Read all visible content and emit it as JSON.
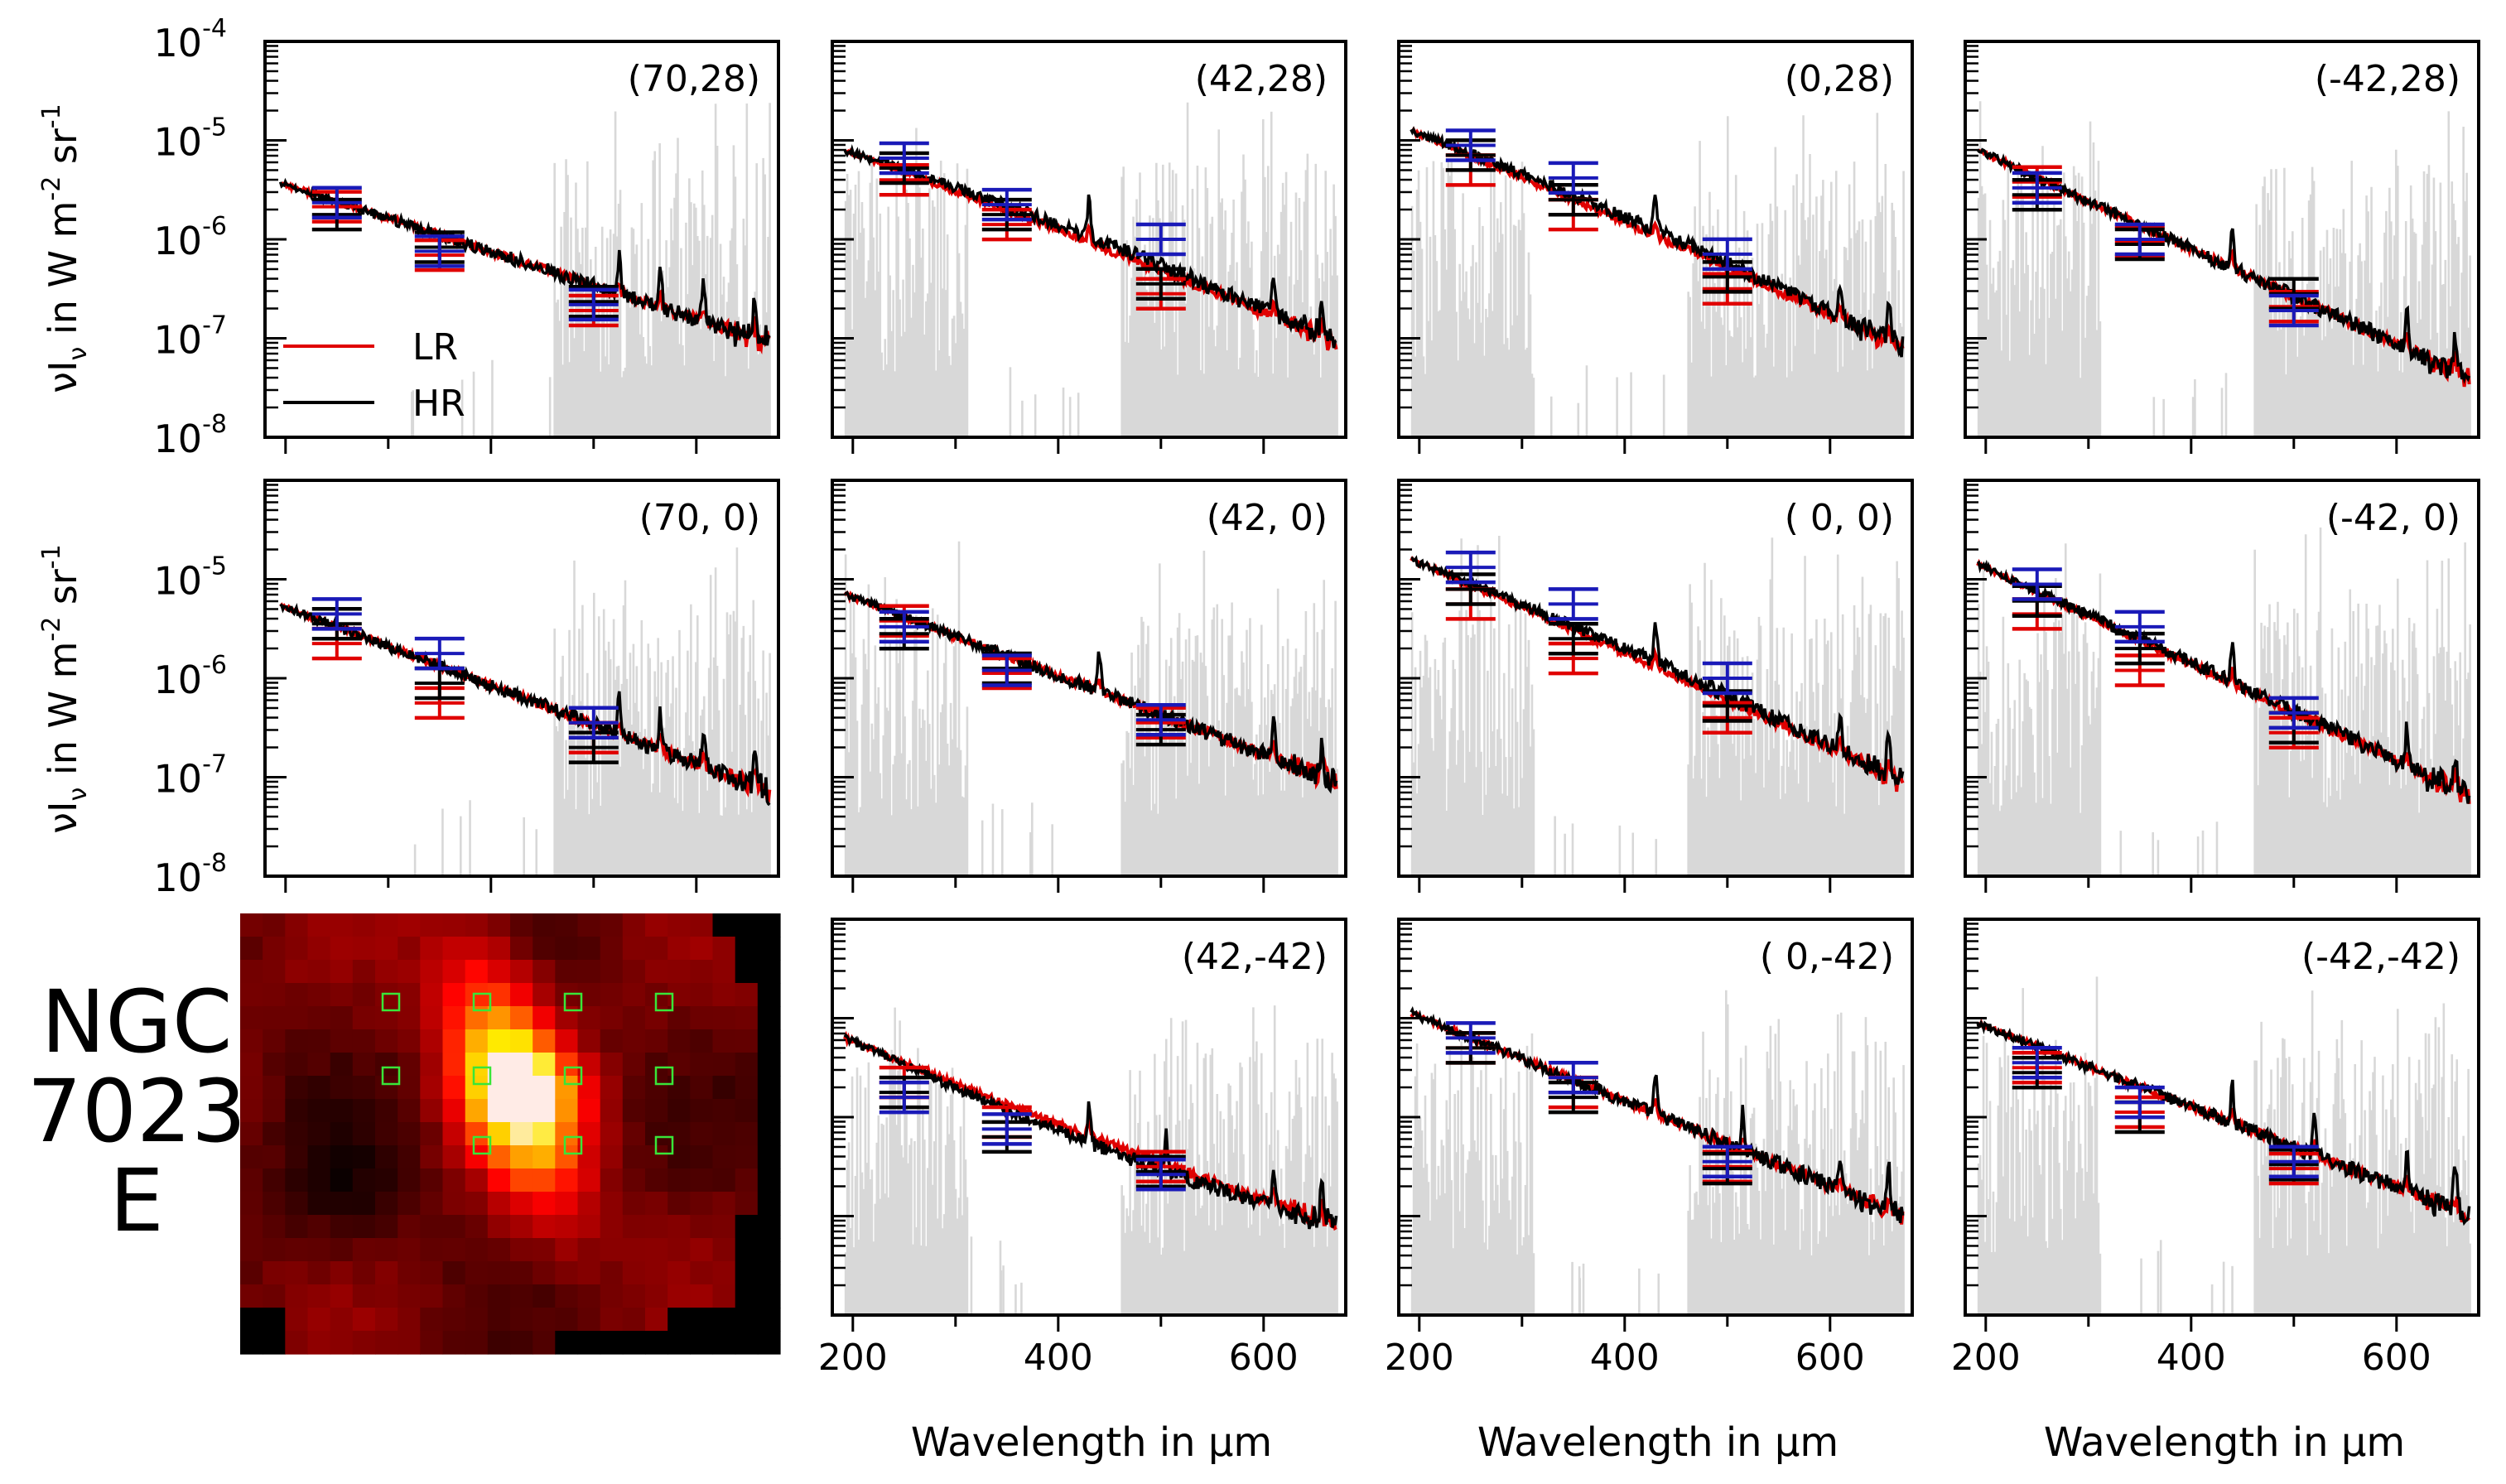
{
  "figure": {
    "object_label": [
      "NGC",
      "7023",
      "E"
    ],
    "ylabel_parts": [
      "νI",
      "ν",
      " in W m",
      "-2",
      " sr",
      "-1"
    ],
    "xlabel": "Wavelength in µm",
    "colors": {
      "lr": "#e00000",
      "hr": "#000000",
      "photometry": "#1a1ab8",
      "noise": "#d8d8d8",
      "map_box": "#39e639"
    }
  },
  "chart_data": {
    "type": "line",
    "title": "",
    "x_range": [
      180,
      680
    ],
    "xticks": [
      200,
      400,
      600
    ],
    "ylim_log10": [
      -8,
      -4
    ],
    "yticks_labels": [
      {
        "base": "10",
        "exp": "-4"
      },
      {
        "base": "10",
        "exp": "-5"
      },
      {
        "base": "10",
        "exp": "-6"
      },
      {
        "base": "10",
        "exp": "-7"
      },
      {
        "base": "10",
        "exp": "-8"
      }
    ],
    "legend": [
      {
        "name": "LR",
        "color": "#e00000"
      },
      {
        "name": "HR",
        "color": "#000000"
      }
    ],
    "panels": [
      {
        "label": "(70,28)",
        "row": 0,
        "col": 0,
        "slw_only": true,
        "start_log": -5.42,
        "end_log": -7.05,
        "shape": 0.0,
        "shift": 0.0,
        "lines": [
          565,
          525,
          607,
          657
        ],
        "photo_blue": [
          -5.63,
          -6.12,
          -6.66
        ],
        "photo_red": [
          -5.67,
          -6.16,
          -6.72
        ],
        "photo_black": [
          -5.75,
          -6.08,
          -6.63
        ]
      },
      {
        "label": "(42,28)",
        "row": 0,
        "col": 1,
        "slw_only": false,
        "start_log": -5.1,
        "end_log": -7.05,
        "shape": 0.1,
        "shift": 0.06,
        "lines": [
          430,
          610,
          657
        ],
        "photo_blue": [
          -5.18,
          -5.65,
          -6.0
        ],
        "photo_red": [
          -5.4,
          -5.85,
          -6.55
        ],
        "photo_black": [
          -5.28,
          -5.75,
          -6.45
        ]
      },
      {
        "label": "(0,28)",
        "row": 0,
        "col": 2,
        "slw_only": false,
        "start_log": -4.9,
        "end_log": -7.1,
        "shape": 0.08,
        "shift": 0.05,
        "lines": [
          430,
          610,
          657
        ],
        "photo_blue": [
          -5.05,
          -5.38,
          -6.15
        ],
        "photo_red": [
          -5.3,
          -5.75,
          -6.5
        ],
        "photo_black": [
          -5.15,
          -5.6,
          -6.38
        ]
      },
      {
        "label": "(-42,28)",
        "row": 0,
        "col": 3,
        "slw_only": false,
        "start_log": -5.1,
        "end_log": -7.4,
        "shape": 0.0,
        "shift": 0.0,
        "lines": [
          440,
          610,
          657
        ],
        "photo_blue": [
          -5.48,
          -6.0,
          -6.72
        ],
        "photo_red": [
          -5.42,
          -6.02,
          -6.68
        ],
        "photo_black": [
          -5.55,
          -6.05,
          -6.55
        ]
      },
      {
        "label": "(70, 0)",
        "row": 1,
        "col": 0,
        "slw_only": true,
        "start_log": -5.25,
        "end_log": -7.15,
        "shape": 0.0,
        "shift": 0.0,
        "lines": [
          565,
          525,
          607,
          657
        ],
        "photo_blue": [
          -5.35,
          -5.75,
          -6.45
        ],
        "photo_red": [
          -5.65,
          -6.25,
          -6.6
        ],
        "photo_black": [
          -5.45,
          -6.05,
          -6.7
        ]
      },
      {
        "label": "(42, 0)",
        "row": 1,
        "col": 1,
        "slw_only": false,
        "start_log": -5.15,
        "end_log": -7.05,
        "shape": 0.0,
        "shift": 0.0,
        "lines": [
          440,
          610,
          657
        ],
        "photo_blue": [
          -5.48,
          -5.92,
          -6.42
        ],
        "photo_red": [
          -5.42,
          -5.95,
          -6.45
        ],
        "photo_black": [
          -5.55,
          -5.9,
          -6.52
        ]
      },
      {
        "label": "( 0, 0)",
        "row": 1,
        "col": 2,
        "slw_only": false,
        "start_log": -4.8,
        "end_log": -7.05,
        "shape": 0.08,
        "shift": 0.05,
        "lines": [
          430,
          610,
          657
        ],
        "photo_blue": [
          -4.88,
          -5.25,
          -6.0
        ],
        "photo_red": [
          -5.25,
          -5.8,
          -6.4
        ],
        "photo_black": [
          -5.1,
          -5.6,
          -6.28
        ]
      },
      {
        "label": "(-42, 0)",
        "row": 1,
        "col": 3,
        "slw_only": false,
        "start_log": -4.85,
        "end_log": -7.2,
        "shape": 0.03,
        "shift": 0.02,
        "lines": [
          440,
          610,
          657
        ],
        "photo_blue": [
          -5.05,
          -5.48,
          -6.35
        ],
        "photo_red": [
          -5.35,
          -5.92,
          -6.55
        ],
        "photo_black": [
          -5.22,
          -5.7,
          -6.5
        ]
      },
      {
        "label": "(42,-42)",
        "row": 2,
        "col": 1,
        "slw_only": false,
        "start_log": -5.2,
        "end_log": -7.1,
        "shape": -0.12,
        "shift": -0.07,
        "lines": [
          430,
          505,
          610,
          657
        ],
        "photo_blue": [
          -5.8,
          -6.12,
          -6.58
        ],
        "photo_red": [
          -5.65,
          -6.05,
          -6.5
        ],
        "photo_black": [
          -5.75,
          -6.2,
          -6.55
        ]
      },
      {
        "label": "( 0,-42)",
        "row": 2,
        "col": 2,
        "slw_only": false,
        "start_log": -4.95,
        "end_log": -7.0,
        "shape": 0.0,
        "shift": 0.0,
        "lines": [
          430,
          515,
          610,
          657
        ],
        "photo_blue": [
          -5.2,
          -5.6,
          -6.45
        ],
        "photo_red": [
          -5.3,
          -5.75,
          -6.5
        ],
        "photo_black": [
          -5.3,
          -5.8,
          -6.52
        ]
      },
      {
        "label": "(-42,-42)",
        "row": 2,
        "col": 3,
        "slw_only": false,
        "start_log": -5.05,
        "end_log": -7.0,
        "shape": 0.0,
        "shift": 0.0,
        "lines": [
          440,
          520,
          610,
          657
        ],
        "photo_blue": [
          -5.45,
          -5.85,
          -6.45
        ],
        "photo_red": [
          -5.5,
          -5.95,
          -6.52
        ],
        "photo_black": [
          -5.55,
          -6.0,
          -6.48
        ]
      }
    ],
    "map": {
      "title": "NGC 7023 E",
      "colormap": "hot",
      "boxes": [
        "(-42,28)",
        "(0,28)",
        "(42,28)",
        "(70,28)",
        "(-42,0)",
        "(0,0)",
        "(42,0)",
        "(70,0)",
        "(-42,-42)",
        "(0,-42)",
        "(42,-42)"
      ]
    }
  }
}
